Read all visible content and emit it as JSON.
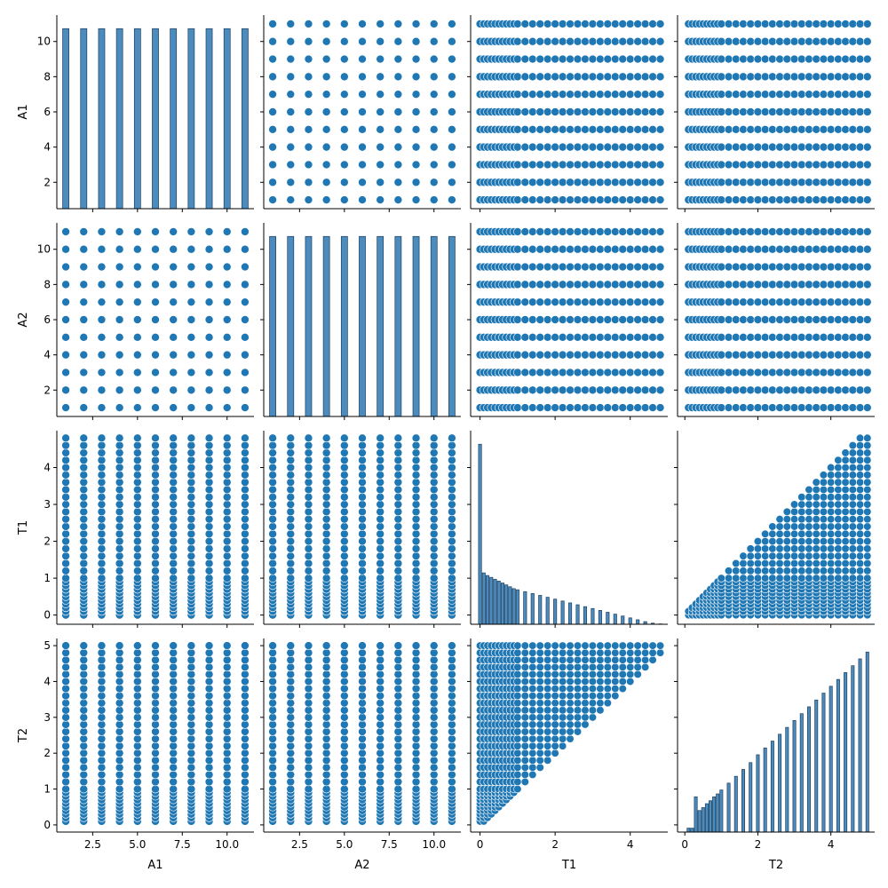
{
  "chart_data": {
    "type": "pairplot",
    "variables": [
      "A1",
      "A2",
      "T1",
      "T2"
    ],
    "colors": {
      "points": "#1f77b4",
      "bars": "#4c8bbd",
      "bar_edge": "#1c3f5e"
    },
    "grid": false,
    "point_sets": {
      "A1_values": [
        1,
        2,
        3,
        4,
        5,
        6,
        7,
        8,
        9,
        10,
        11
      ],
      "A2_values": [
        1,
        2,
        3,
        4,
        5,
        6,
        7,
        8,
        9,
        10,
        11
      ],
      "T1_values": [
        0.0,
        0.1,
        0.2,
        0.3,
        0.4,
        0.5,
        0.6,
        0.7,
        0.8,
        0.9,
        1.0,
        1.2,
        1.4,
        1.6,
        1.8,
        2.0,
        2.2,
        2.4,
        2.6,
        2.8,
        3.0,
        3.2,
        3.4,
        3.6,
        3.8,
        4.0,
        4.2,
        4.4,
        4.6,
        4.8
      ],
      "T2_values": [
        0.1,
        0.2,
        0.3,
        0.4,
        0.5,
        0.6,
        0.7,
        0.8,
        0.9,
        1.0,
        1.2,
        1.4,
        1.6,
        1.8,
        2.0,
        2.2,
        2.4,
        2.6,
        2.8,
        3.0,
        3.2,
        3.4,
        3.6,
        3.8,
        4.0,
        4.2,
        4.4,
        4.6,
        4.8,
        5.0
      ],
      "T1_T2_relation": "T1 <= T2"
    },
    "histograms": {
      "A1": {
        "bins": [
          1,
          2,
          3,
          4,
          5,
          6,
          7,
          8,
          9,
          10,
          11
        ],
        "counts": [
          5.75,
          5.75,
          5.75,
          5.75,
          5.75,
          5.75,
          5.75,
          5.75,
          5.75,
          5.75,
          5.75
        ],
        "bar_width": 0.35
      },
      "A2": {
        "bins": [
          1,
          2,
          3,
          4,
          5,
          6,
          7,
          8,
          9,
          10,
          11
        ],
        "counts": [
          5.75,
          5.75,
          5.75,
          5.75,
          5.75,
          5.75,
          5.75,
          5.75,
          5.75,
          5.75,
          5.75
        ],
        "bar_width": 0.35
      },
      "T1": {
        "bins": [
          0.0,
          0.1,
          0.2,
          0.3,
          0.4,
          0.5,
          0.6,
          0.7,
          0.8,
          0.9,
          1.0,
          1.2,
          1.4,
          1.6,
          1.8,
          2.0,
          2.2,
          2.4,
          2.6,
          2.8,
          3.0,
          3.2,
          3.4,
          3.6,
          3.8,
          4.0,
          4.2,
          4.4,
          4.6,
          4.8
        ],
        "counts": [
          4.8,
          1.37,
          1.3,
          1.25,
          1.2,
          1.15,
          1.1,
          1.05,
          1.0,
          0.95,
          0.92,
          0.87,
          0.82,
          0.77,
          0.72,
          0.67,
          0.62,
          0.57,
          0.52,
          0.47,
          0.42,
          0.37,
          0.32,
          0.27,
          0.22,
          0.17,
          0.12,
          0.07,
          0.03,
          0.01
        ],
        "bar_width": 0.08
      },
      "T2": {
        "bins": [
          0.1,
          0.2,
          0.3,
          0.4,
          0.5,
          0.6,
          0.7,
          0.8,
          0.9,
          1.0,
          1.2,
          1.4,
          1.6,
          1.8,
          2.0,
          2.2,
          2.4,
          2.6,
          2.8,
          3.0,
          3.2,
          3.4,
          3.6,
          3.8,
          4.0,
          4.2,
          4.4,
          4.6,
          4.8,
          5.0
        ],
        "counts": [
          0.04,
          0.04,
          0.36,
          0.22,
          0.25,
          0.29,
          0.32,
          0.36,
          0.39,
          0.43,
          0.5,
          0.57,
          0.64,
          0.71,
          0.79,
          0.86,
          0.93,
          1.0,
          1.07,
          1.14,
          1.21,
          1.28,
          1.35,
          1.42,
          1.49,
          1.56,
          1.63,
          1.7,
          1.77,
          1.84
        ],
        "bar_width": 0.08
      }
    },
    "axes": {
      "A1": {
        "range": [
          0.5,
          11.5
        ],
        "ticks_y": [
          2,
          4,
          6,
          8,
          10
        ],
        "ticks_x": [
          2.5,
          5.0,
          7.5,
          10.0
        ],
        "tick_labels_x": [
          "2.5",
          "5.0",
          "7.5",
          "10.0"
        ],
        "tick_labels_y": [
          "2",
          "4",
          "6",
          "8",
          "10"
        ]
      },
      "A2": {
        "range": [
          0.5,
          11.5
        ],
        "ticks_y": [
          2,
          4,
          6,
          8,
          10
        ],
        "ticks_x": [
          2.5,
          5.0,
          7.5,
          10.0
        ],
        "tick_labels_x": [
          "2.5",
          "5.0",
          "7.5",
          "10.0"
        ],
        "tick_labels_y": [
          "2",
          "4",
          "6",
          "8",
          "10"
        ]
      },
      "T1": {
        "range": [
          -0.25,
          5.0
        ],
        "ticks_y": [
          0,
          1,
          2,
          3,
          4
        ],
        "ticks_x": [
          0,
          2,
          4
        ],
        "tick_labels_x": [
          "0",
          "2",
          "4"
        ],
        "tick_labels_y": [
          "0",
          "1",
          "2",
          "3",
          "4"
        ]
      },
      "T2": {
        "range": [
          -0.2,
          5.2
        ],
        "ticks_y": [
          0,
          1,
          2,
          3,
          4,
          5
        ],
        "ticks_x": [
          0,
          2,
          4
        ],
        "tick_labels_x": [
          "0",
          "2",
          "4"
        ],
        "tick_labels_y": [
          "0",
          "1",
          "2",
          "3",
          "4",
          "5"
        ]
      }
    }
  }
}
